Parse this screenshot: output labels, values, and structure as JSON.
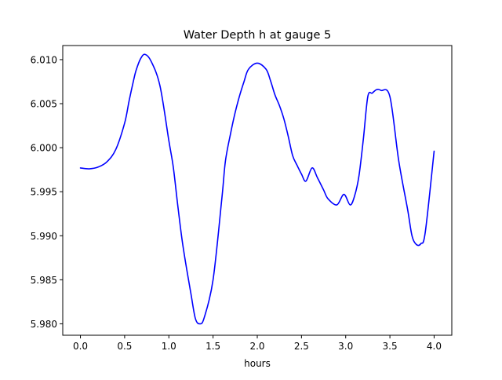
{
  "chart_data": {
    "type": "line",
    "title": "Water Depth h at gauge 5",
    "xlabel": "hours",
    "ylabel": "",
    "xlim": [
      -0.2,
      4.2
    ],
    "ylim": [
      5.9787,
      6.0116
    ],
    "xticks": [
      0.0,
      0.5,
      1.0,
      1.5,
      2.0,
      2.5,
      3.0,
      3.5,
      4.0
    ],
    "xtick_labels": [
      "0.0",
      "0.5",
      "1.0",
      "1.5",
      "2.0",
      "2.5",
      "3.0",
      "3.5",
      "4.0"
    ],
    "yticks": [
      5.98,
      5.985,
      5.99,
      5.995,
      6.0,
      6.005,
      6.01
    ],
    "ytick_labels": [
      "5.980",
      "5.985",
      "5.990",
      "5.995",
      "6.000",
      "6.005",
      "6.010"
    ],
    "grid": false,
    "color": "#0000ff",
    "series": [
      {
        "name": "",
        "x": [
          0.0,
          0.1,
          0.2,
          0.3,
          0.4,
          0.5,
          0.55,
          0.6,
          0.63,
          0.68,
          0.73,
          0.8,
          0.9,
          1.0,
          1.05,
          1.1,
          1.15,
          1.2,
          1.25,
          1.3,
          1.35,
          1.4,
          1.5,
          1.6,
          1.64,
          1.7,
          1.75,
          1.8,
          1.85,
          1.9,
          2.0,
          2.1,
          2.15,
          2.2,
          2.25,
          2.3,
          2.35,
          2.4,
          2.45,
          2.5,
          2.55,
          2.62,
          2.68,
          2.75,
          2.8,
          2.9,
          2.98,
          3.05,
          3.1,
          3.15,
          3.2,
          3.25,
          3.3,
          3.35,
          3.4,
          3.5,
          3.6,
          3.7,
          3.75,
          3.8,
          3.85,
          3.9,
          4.0
        ],
        "y": [
          5.9977,
          5.9976,
          5.9978,
          5.9984,
          5.9998,
          6.0028,
          6.0053,
          6.0076,
          6.0088,
          6.0101,
          6.0106,
          6.0098,
          6.007,
          6.0008,
          5.9978,
          5.9935,
          5.9895,
          5.9863,
          5.9834,
          5.9806,
          5.98,
          5.9807,
          5.985,
          5.9943,
          5.9985,
          6.0017,
          6.004,
          6.0059,
          6.0075,
          6.0089,
          6.0096,
          6.0089,
          6.0076,
          6.006,
          6.0048,
          6.0033,
          6.0013,
          5.9991,
          5.998,
          5.997,
          5.9962,
          5.9977,
          5.9966,
          5.9952,
          5.9942,
          5.9935,
          5.9947,
          5.9935,
          5.9945,
          5.9968,
          6.001,
          6.0058,
          6.0062,
          6.0066,
          6.0065,
          6.0058,
          5.9985,
          5.993,
          5.99,
          5.989,
          5.9891,
          5.9904,
          5.9996
        ]
      }
    ]
  }
}
